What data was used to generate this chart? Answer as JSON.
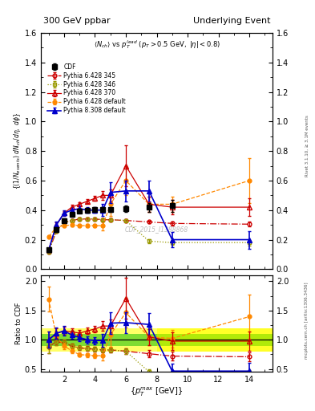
{
  "title_left": "300 GeV ppbar",
  "title_right": "Underlying Event",
  "watermark": "CDF_2015_I1388868",
  "cdf_x": [
    1.0,
    1.5,
    2.0,
    2.5,
    3.0,
    3.5,
    4.0,
    4.5,
    5.0,
    6.0,
    7.5,
    9.0
  ],
  "cdf_y": [
    0.13,
    0.27,
    0.33,
    0.37,
    0.395,
    0.4,
    0.405,
    0.405,
    0.405,
    0.41,
    0.42,
    0.43
  ],
  "cdf_ye": [
    0.015,
    0.015,
    0.015,
    0.015,
    0.015,
    0.015,
    0.015,
    0.015,
    0.015,
    0.02,
    0.03,
    0.04
  ],
  "p345_x": [
    1.0,
    1.5,
    2.0,
    2.5,
    3.0,
    3.5,
    4.0,
    4.5,
    5.0,
    6.0,
    7.5,
    9.0,
    14.0
  ],
  "p345_y": [
    0.115,
    0.26,
    0.315,
    0.33,
    0.34,
    0.34,
    0.34,
    0.335,
    0.335,
    0.33,
    0.32,
    0.31,
    0.305
  ],
  "p345_ye": [
    0.005,
    0.008,
    0.008,
    0.008,
    0.008,
    0.008,
    0.008,
    0.008,
    0.008,
    0.008,
    0.01,
    0.015,
    0.015
  ],
  "p346_x": [
    1.0,
    1.5,
    2.0,
    2.5,
    3.0,
    3.5,
    4.0,
    4.5,
    5.0,
    6.0,
    7.5,
    9.0,
    14.0
  ],
  "p346_y": [
    0.115,
    0.26,
    0.315,
    0.33,
    0.34,
    0.34,
    0.34,
    0.335,
    0.335,
    0.33,
    0.19,
    0.18,
    0.18
  ],
  "p346_ye": [
    0.005,
    0.008,
    0.008,
    0.008,
    0.008,
    0.008,
    0.008,
    0.008,
    0.008,
    0.008,
    0.015,
    0.015,
    0.02
  ],
  "p370_x": [
    1.0,
    1.5,
    2.0,
    2.5,
    3.0,
    3.5,
    4.0,
    4.5,
    5.0,
    6.0,
    7.5,
    9.0,
    14.0
  ],
  "p370_y": [
    0.13,
    0.3,
    0.38,
    0.42,
    0.44,
    0.46,
    0.48,
    0.5,
    0.5,
    0.7,
    0.44,
    0.42,
    0.42
  ],
  "p370_ye": [
    0.01,
    0.015,
    0.015,
    0.015,
    0.015,
    0.015,
    0.015,
    0.03,
    0.04,
    0.14,
    0.05,
    0.05,
    0.06
  ],
  "pdef_x": [
    1.0,
    1.5,
    2.0,
    2.5,
    3.0,
    3.5,
    4.0,
    4.5,
    5.0,
    6.0,
    7.5,
    9.0,
    14.0
  ],
  "pdef_y": [
    0.22,
    0.285,
    0.295,
    0.3,
    0.295,
    0.295,
    0.295,
    0.295,
    0.44,
    0.6,
    0.44,
    0.44,
    0.6
  ],
  "pdef_ye": [
    0.01,
    0.01,
    0.01,
    0.01,
    0.01,
    0.01,
    0.01,
    0.03,
    0.08,
    0.1,
    0.05,
    0.05,
    0.15
  ],
  "p8_x": [
    1.0,
    1.5,
    2.0,
    2.5,
    3.0,
    3.5,
    4.0,
    4.5,
    5.0,
    6.0,
    7.5,
    9.0,
    14.0
  ],
  "p8_y": [
    0.13,
    0.3,
    0.38,
    0.4,
    0.41,
    0.4,
    0.4,
    0.4,
    0.52,
    0.53,
    0.53,
    0.2,
    0.2
  ],
  "p8_ye": [
    0.01,
    0.02,
    0.02,
    0.02,
    0.02,
    0.02,
    0.02,
    0.04,
    0.07,
    0.07,
    0.07,
    0.05,
    0.06
  ],
  "color_cdf": "#000000",
  "color_345": "#cc0000",
  "color_346": "#999900",
  "color_370": "#cc0000",
  "color_def": "#ff8800",
  "color_p8": "#0000cc",
  "xlim": [
    0.5,
    15.5
  ],
  "ylim_main": [
    0.0,
    1.6
  ],
  "ylim_ratio": [
    0.45,
    2.1
  ]
}
